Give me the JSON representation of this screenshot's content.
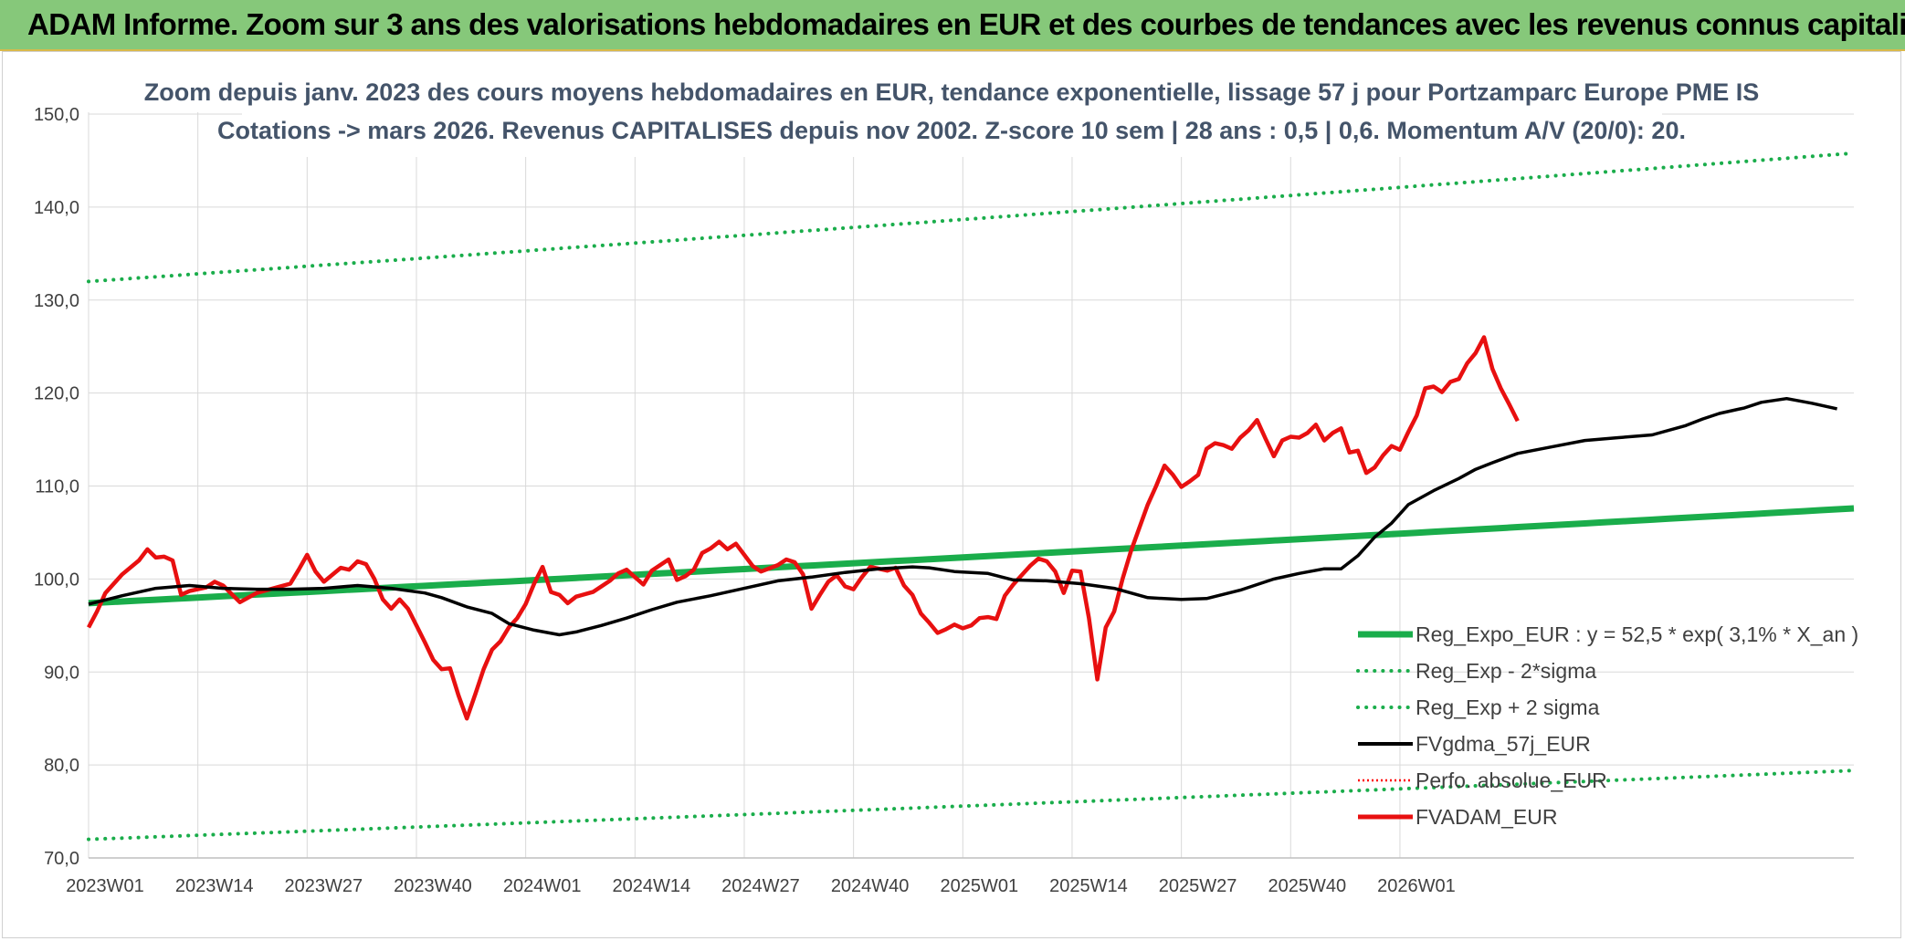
{
  "header": {
    "title": "ADAM Informe. Zoom sur 3 ans des valorisations hebdomadaires en EUR et des courbes de tendances avec les revenus connus capitalisés"
  },
  "chart_data": {
    "type": "line",
    "title_line1": "Zoom depuis janv. 2023 des cours moyens hebdomadaires en EUR, tendance exponentielle, lissage 57 j pour Portzamparc Europe PME IS",
    "title_line2": "Cotations -> mars 2026. Revenus CAPITALISES depuis nov 2002. Z-score 10 sem | 28 ans : 0,5 | 0,6. Momentum A/V (20/0): 20.",
    "ylim": [
      70,
      150
    ],
    "y_ticks": [
      "70,0",
      "80,0",
      "90,0",
      "100,0",
      "110,0",
      "120,0",
      "130,0",
      "140,0",
      "150,0"
    ],
    "x_tick_labels": [
      "2023W01",
      "2023W14",
      "2023W27",
      "2023W40",
      "2024W01",
      "2024W14",
      "2024W27",
      "2024W40",
      "2025W01",
      "2025W14",
      "2025W27",
      "2025W40",
      "2026W01"
    ],
    "x_count": 166,
    "grid": true,
    "legend_position": "bottom-right",
    "colors": {
      "reg_expo": "#1aad4b",
      "band": "#1aad4b",
      "gdma": "#000000",
      "perfo": "#ff0000",
      "fvadam": "#e81010"
    },
    "series": [
      {
        "name": "Reg_Expo_EUR : y = 52,5 * exp( 3,1% *  X_an )",
        "key": "reg_expo",
        "start": 97.4,
        "end": 107.6
      },
      {
        "name": "Reg_Exp - 2*sigma",
        "key": "band_low",
        "start": 72.0,
        "end": 79.4
      },
      {
        "name": "Reg_Exp + 2 sigma",
        "key": "band_high",
        "start": 132.0,
        "end": 145.8
      },
      {
        "name": "FVgdma_57j_EUR",
        "key": "gdma",
        "points": [
          [
            0,
            97.3
          ],
          [
            4,
            98.2
          ],
          [
            8,
            99.0
          ],
          [
            12,
            99.3
          ],
          [
            16,
            99.0
          ],
          [
            20,
            98.9
          ],
          [
            24,
            98.9
          ],
          [
            28,
            99.0
          ],
          [
            32,
            99.3
          ],
          [
            36,
            99.0
          ],
          [
            40,
            98.5
          ],
          [
            42,
            98.0
          ],
          [
            45,
            97.0
          ],
          [
            48,
            96.3
          ],
          [
            50,
            95.2
          ],
          [
            53,
            94.5
          ],
          [
            56,
            94.0
          ],
          [
            58,
            94.3
          ],
          [
            61,
            95.0
          ],
          [
            64,
            95.8
          ],
          [
            67,
            96.7
          ],
          [
            70,
            97.5
          ],
          [
            74,
            98.2
          ],
          [
            78,
            99.0
          ],
          [
            82,
            99.8
          ],
          [
            86,
            100.2
          ],
          [
            90,
            100.7
          ],
          [
            94,
            101.1
          ],
          [
            98,
            101.3
          ],
          [
            100,
            101.2
          ],
          [
            103,
            100.8
          ],
          [
            107,
            100.6
          ],
          [
            110,
            99.9
          ],
          [
            114,
            99.8
          ],
          [
            118,
            99.5
          ],
          [
            122,
            99.0
          ],
          [
            126,
            98.0
          ],
          [
            130,
            97.8
          ],
          [
            133,
            97.9
          ],
          [
            137,
            98.8
          ],
          [
            141,
            100.0
          ],
          [
            144,
            100.6
          ],
          [
            147,
            101.1
          ],
          [
            149,
            101.1
          ],
          [
            151,
            102.5
          ],
          [
            153,
            104.5
          ],
          [
            155,
            106.0
          ],
          [
            157,
            108.0
          ],
          [
            160,
            109.5
          ],
          [
            163,
            110.8
          ],
          [
            165,
            111.8
          ],
          [
            167,
            112.5
          ],
          [
            170,
            113.5
          ],
          [
            174,
            114.2
          ],
          [
            178,
            114.9
          ],
          [
            182,
            115.2
          ],
          [
            186,
            115.5
          ],
          [
            190,
            116.5
          ],
          [
            192,
            117.2
          ],
          [
            194,
            117.8
          ],
          [
            197,
            118.4
          ],
          [
            199,
            119.0
          ],
          [
            202,
            119.4
          ],
          [
            205,
            118.9
          ],
          [
            208,
            118.3
          ]
        ]
      },
      {
        "name": "Perfo. absolue_EUR",
        "key": "perfo",
        "points": []
      },
      {
        "name": "FVADAM_EUR",
        "key": "fvadam",
        "points": [
          [
            0,
            94.8
          ],
          [
            1,
            96.5
          ],
          [
            2,
            98.5
          ],
          [
            4,
            100.5
          ],
          [
            6,
            102.0
          ],
          [
            7,
            103.2
          ],
          [
            8,
            102.3
          ],
          [
            9,
            102.4
          ],
          [
            10,
            102.0
          ],
          [
            11,
            98.3
          ],
          [
            12,
            98.7
          ],
          [
            14,
            99.1
          ],
          [
            15,
            99.7
          ],
          [
            16,
            99.3
          ],
          [
            18,
            97.5
          ],
          [
            20,
            98.5
          ],
          [
            22,
            99.0
          ],
          [
            24,
            99.5
          ],
          [
            25,
            101.0
          ],
          [
            26,
            102.6
          ],
          [
            27,
            100.8
          ],
          [
            28,
            99.7
          ],
          [
            30,
            101.2
          ],
          [
            31,
            101.0
          ],
          [
            32,
            101.9
          ],
          [
            33,
            101.6
          ],
          [
            34,
            100.0
          ],
          [
            35,
            97.8
          ],
          [
            36,
            96.8
          ],
          [
            37,
            97.8
          ],
          [
            38,
            96.8
          ],
          [
            39,
            95.0
          ],
          [
            40,
            93.2
          ],
          [
            41,
            91.3
          ],
          [
            42,
            90.3
          ],
          [
            43,
            90.4
          ],
          [
            44,
            87.5
          ],
          [
            45,
            85.0
          ],
          [
            46,
            87.6
          ],
          [
            47,
            90.3
          ],
          [
            48,
            92.4
          ],
          [
            49,
            93.3
          ],
          [
            50,
            94.8
          ],
          [
            51,
            95.8
          ],
          [
            52,
            97.3
          ],
          [
            53,
            99.5
          ],
          [
            54,
            101.3
          ],
          [
            55,
            98.6
          ],
          [
            56,
            98.3
          ],
          [
            57,
            97.4
          ],
          [
            58,
            98.1
          ],
          [
            60,
            98.6
          ],
          [
            62,
            99.8
          ],
          [
            63,
            100.6
          ],
          [
            64,
            101.0
          ],
          [
            66,
            99.4
          ],
          [
            67,
            100.9
          ],
          [
            68,
            101.5
          ],
          [
            69,
            102.1
          ],
          [
            70,
            99.9
          ],
          [
            71,
            100.3
          ],
          [
            72,
            101.0
          ],
          [
            73,
            102.8
          ],
          [
            74,
            103.3
          ],
          [
            75,
            104.0
          ],
          [
            76,
            103.2
          ],
          [
            77,
            103.8
          ],
          [
            78,
            102.6
          ],
          [
            79,
            101.4
          ],
          [
            80,
            100.8
          ],
          [
            82,
            101.5
          ],
          [
            83,
            102.1
          ],
          [
            84,
            101.8
          ],
          [
            85,
            100.5
          ],
          [
            86,
            96.8
          ],
          [
            87,
            98.3
          ],
          [
            88,
            99.7
          ],
          [
            89,
            100.4
          ],
          [
            90,
            99.2
          ],
          [
            91,
            98.9
          ],
          [
            92,
            100.2
          ],
          [
            93,
            101.3
          ],
          [
            95,
            100.9
          ],
          [
            96,
            101.2
          ],
          [
            97,
            99.3
          ],
          [
            98,
            98.3
          ],
          [
            99,
            96.3
          ],
          [
            100,
            95.3
          ],
          [
            101,
            94.2
          ],
          [
            102,
            94.6
          ],
          [
            103,
            95.1
          ],
          [
            104,
            94.7
          ],
          [
            105,
            95.0
          ],
          [
            106,
            95.8
          ],
          [
            107,
            95.9
          ],
          [
            108,
            95.7
          ],
          [
            109,
            98.2
          ],
          [
            110,
            99.4
          ],
          [
            111,
            100.4
          ],
          [
            112,
            101.4
          ],
          [
            113,
            102.2
          ],
          [
            114,
            101.9
          ],
          [
            115,
            100.8
          ],
          [
            116,
            98.5
          ],
          [
            117,
            100.9
          ],
          [
            118,
            100.8
          ],
          [
            119,
            95.8
          ],
          [
            120,
            89.2
          ],
          [
            121,
            94.8
          ],
          [
            122,
            96.5
          ],
          [
            123,
            100.0
          ],
          [
            124,
            103.0
          ],
          [
            125,
            105.5
          ],
          [
            126,
            108.0
          ],
          [
            127,
            110.0
          ],
          [
            128,
            112.2
          ],
          [
            129,
            111.2
          ],
          [
            130,
            109.9
          ],
          [
            131,
            110.5
          ],
          [
            132,
            111.2
          ],
          [
            133,
            114.0
          ],
          [
            134,
            114.6
          ],
          [
            135,
            114.4
          ],
          [
            136,
            114.0
          ],
          [
            137,
            115.2
          ],
          [
            138,
            116.0
          ],
          [
            139,
            117.1
          ],
          [
            140,
            115.1
          ],
          [
            141,
            113.2
          ],
          [
            142,
            114.9
          ],
          [
            143,
            115.3
          ],
          [
            144,
            115.2
          ],
          [
            145,
            115.7
          ],
          [
            146,
            116.6
          ],
          [
            147,
            114.9
          ],
          [
            148,
            115.7
          ],
          [
            149,
            116.2
          ],
          [
            150,
            113.6
          ],
          [
            151,
            113.8
          ],
          [
            152,
            111.4
          ],
          [
            153,
            112.0
          ],
          [
            154,
            113.3
          ],
          [
            155,
            114.3
          ],
          [
            156,
            113.9
          ],
          [
            157,
            115.8
          ],
          [
            158,
            117.6
          ],
          [
            159,
            120.5
          ],
          [
            160,
            120.7
          ],
          [
            161,
            120.1
          ],
          [
            162,
            121.2
          ],
          [
            163,
            121.5
          ],
          [
            164,
            123.2
          ],
          [
            165,
            124.3
          ],
          [
            166,
            126.0
          ],
          [
            167,
            122.6
          ],
          [
            168,
            120.5
          ],
          [
            169,
            118.8
          ],
          [
            170,
            117.0
          ]
        ]
      }
    ]
  }
}
